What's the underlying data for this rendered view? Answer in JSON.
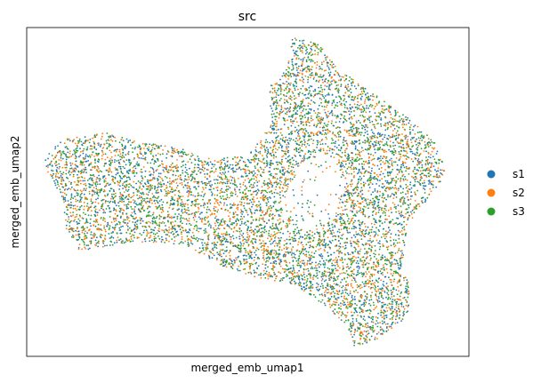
{
  "chart_data": {
    "type": "scatter",
    "title": "src",
    "xlabel": "merged_emb_umap1",
    "ylabel": "merged_emb_umap2",
    "x_ticks_visible": false,
    "y_ticks_visible": false,
    "grid": false,
    "legend_position": "right",
    "series": [
      {
        "name": "s1",
        "color": "#1f77b4"
      },
      {
        "name": "s2",
        "color": "#ff7f0e"
      },
      {
        "name": "s3",
        "color": "#2ca02c"
      }
    ],
    "xlim": [
      0,
      1
    ],
    "ylim": [
      0,
      1
    ],
    "point_cloud_outline": [
      [
        0.04,
        0.6
      ],
      [
        0.08,
        0.66
      ],
      [
        0.18,
        0.68
      ],
      [
        0.26,
        0.65
      ],
      [
        0.33,
        0.64
      ],
      [
        0.42,
        0.6
      ],
      [
        0.5,
        0.61
      ],
      [
        0.55,
        0.7
      ],
      [
        0.55,
        0.82
      ],
      [
        0.59,
        0.88
      ],
      [
        0.6,
        0.97
      ],
      [
        0.66,
        0.95
      ],
      [
        0.7,
        0.88
      ],
      [
        0.76,
        0.82
      ],
      [
        0.85,
        0.74
      ],
      [
        0.92,
        0.66
      ],
      [
        0.95,
        0.56
      ],
      [
        0.92,
        0.5
      ],
      [
        0.86,
        0.4
      ],
      [
        0.85,
        0.28
      ],
      [
        0.87,
        0.2
      ],
      [
        0.86,
        0.12
      ],
      [
        0.79,
        0.05
      ],
      [
        0.74,
        0.03
      ],
      [
        0.72,
        0.1
      ],
      [
        0.68,
        0.15
      ],
      [
        0.6,
        0.22
      ],
      [
        0.52,
        0.24
      ],
      [
        0.43,
        0.28
      ],
      [
        0.36,
        0.34
      ],
      [
        0.24,
        0.35
      ],
      [
        0.12,
        0.32
      ],
      [
        0.09,
        0.38
      ],
      [
        0.08,
        0.48
      ],
      [
        0.05,
        0.55
      ]
    ],
    "point_cloud_hole": [
      [
        0.57,
        0.46
      ],
      [
        0.63,
        0.6
      ],
      [
        0.69,
        0.62
      ],
      [
        0.72,
        0.53
      ],
      [
        0.7,
        0.43
      ],
      [
        0.63,
        0.38
      ]
    ],
    "points_per_series": 2600
  }
}
